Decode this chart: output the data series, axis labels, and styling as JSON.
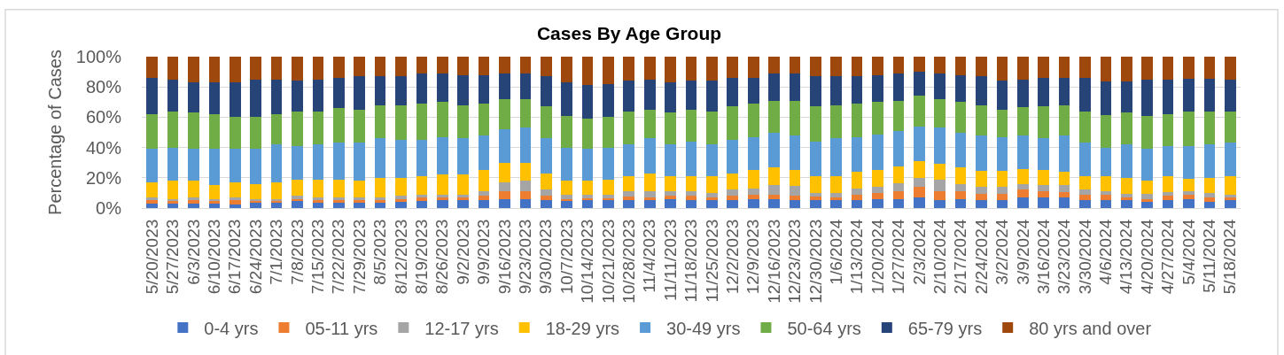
{
  "chart_data": {
    "type": "bar",
    "stacked": true,
    "title": "Cases By Age Group",
    "ylabel": "Percentage of Cases",
    "categories": [
      "5/20/2023",
      "5/27/2023",
      "6/3/2023",
      "6/10/2023",
      "6/17/2023",
      "6/24/2023",
      "7/1/2023",
      "7/8/2023",
      "7/15/2023",
      "7/22/2023",
      "7/29/2023",
      "8/5/2023",
      "8/12/2023",
      "8/19/2023",
      "8/26/2023",
      "9/2/2023",
      "9/9/2023",
      "9/16/2023",
      "9/23/2023",
      "9/30/2023",
      "10/7/2023",
      "10/14/2023",
      "10/21/2023",
      "10/28/2023",
      "11/4/2023",
      "11/11/2023",
      "11/18/2023",
      "11/25/2023",
      "12/2/2023",
      "12/9/2023",
      "12/16/2023",
      "12/23/2023",
      "12/30/2023",
      "1/6/2024",
      "1/13/2024",
      "1/20/2024",
      "1/27/2024",
      "2/3/2024",
      "2/10/2024",
      "2/17/2024",
      "2/24/2024",
      "3/2/2024",
      "3/9/2024",
      "3/16/2024",
      "3/23/2024",
      "3/30/2024",
      "4/6/2024",
      "4/13/2024",
      "4/20/2024",
      "4/27/2024",
      "5/4/2024",
      "5/11/2024",
      "5/18/2024"
    ],
    "series": [
      {
        "name": "0-4 yrs",
        "color": "#4472c4",
        "values": [
          3,
          3,
          3,
          3,
          2.5,
          4,
          4,
          4.5,
          4,
          4,
          4,
          4,
          4,
          4.5,
          5,
          5,
          5,
          6,
          6,
          5,
          5,
          5,
          5,
          5,
          5,
          6,
          5,
          5,
          5,
          6,
          6,
          5,
          5,
          5,
          5,
          6,
          6,
          7,
          5,
          6,
          5,
          5,
          7,
          7,
          7,
          5,
          5,
          5,
          4,
          5,
          6,
          4,
          5
        ]
      },
      {
        "name": "05-11 yrs",
        "color": "#ed7d31",
        "values": [
          2,
          1.5,
          2,
          2,
          2.5,
          1,
          1,
          1.5,
          1,
          1,
          1,
          1,
          2,
          2.5,
          2,
          2,
          3,
          5,
          5,
          3,
          1,
          1.5,
          1.5,
          2.5,
          2,
          2,
          3,
          2,
          3,
          3,
          3,
          3,
          2.5,
          2,
          4,
          4,
          5,
          7,
          6,
          5,
          4.5,
          4.5,
          5,
          4,
          3.5,
          4,
          4,
          2,
          2,
          3,
          2.5,
          3,
          2
        ]
      },
      {
        "name": "12-17 yrs",
        "color": "#a5a5a5",
        "values": [
          2,
          1.5,
          2,
          1,
          2,
          1,
          1,
          2,
          2,
          2,
          2,
          2,
          2,
          2,
          2,
          2,
          3,
          6,
          7,
          4,
          3,
          2.5,
          2.5,
          3.5,
          4,
          3,
          3,
          3,
          4,
          4,
          6,
          6.5,
          2.5,
          3,
          4,
          4,
          5.5,
          6,
          8,
          5,
          4.5,
          4.5,
          4,
          4.5,
          4.5,
          3,
          2,
          2.5,
          3.5,
          2.5,
          2.5,
          3,
          2
        ]
      },
      {
        "name": "18-29 yrs",
        "color": "#ffc000",
        "values": [
          10,
          12,
          11,
          9,
          10,
          10,
          11,
          11,
          12,
          12,
          11,
          13,
          12,
          12,
          13,
          13,
          14,
          13,
          12,
          11,
          9,
          9,
          10,
          10,
          12,
          10,
          10,
          11,
          11,
          12,
          12,
          10.5,
          11,
          11,
          11,
          11,
          11,
          11,
          10,
          11,
          10.5,
          10.5,
          10,
          9.5,
          9,
          9,
          10,
          10.5,
          8.5,
          10.5,
          8.5,
          10,
          12
        ]
      },
      {
        "name": "30-49 yrs",
        "color": "#5b9bd5",
        "values": [
          22,
          22,
          21,
          24,
          22,
          23,
          25,
          22,
          23,
          24,
          25,
          26,
          25,
          24,
          25,
          24,
          23,
          22,
          23,
          23,
          22,
          21,
          21,
          21,
          23,
          21,
          23,
          21,
          22,
          22,
          23,
          23,
          23,
          25,
          22.5,
          23.5,
          23.5,
          23,
          24,
          23,
          23.5,
          22,
          22,
          21,
          24,
          22,
          19,
          22,
          21,
          20,
          21.5,
          22,
          22.5
        ]
      },
      {
        "name": "50-64 yrs",
        "color": "#70ad47",
        "values": [
          23,
          24,
          24,
          23,
          21,
          21,
          20,
          23,
          22,
          23,
          22,
          22,
          23,
          24,
          23,
          22,
          21,
          20,
          19,
          21,
          21,
          20,
          20,
          22,
          19,
          21,
          21,
          22,
          22,
          22,
          21,
          23,
          23,
          22,
          22.5,
          21.5,
          20,
          20,
          19,
          20,
          20,
          18.5,
          18.5,
          21,
          20,
          21,
          21.5,
          21,
          22,
          21,
          23,
          21.5,
          20.5
        ]
      },
      {
        "name": "65-79 yrs",
        "color": "#264478",
        "values": [
          24,
          21,
          20,
          21,
          23,
          25,
          23,
          20,
          21,
          20,
          22,
          19,
          19,
          20,
          19,
          20,
          19,
          17,
          17,
          20,
          22,
          22,
          22,
          20,
          20,
          20,
          19,
          20,
          19,
          17,
          18,
          18,
          20,
          19,
          18,
          18,
          18,
          16,
          17,
          18,
          19,
          19,
          18.5,
          19,
          18,
          22,
          22,
          20.5,
          24,
          23,
          21.5,
          22,
          21
        ]
      },
      {
        "name": "80 yrs and over",
        "color": "#9e480e",
        "values": [
          14,
          15,
          17,
          17,
          17,
          15,
          15,
          16,
          15,
          14,
          13,
          13,
          13,
          11,
          11,
          12,
          12,
          11,
          11,
          13,
          17,
          19,
          18,
          16,
          15,
          17,
          16,
          16,
          14,
          14,
          11,
          11,
          13,
          13,
          13,
          12,
          11,
          10,
          11,
          12,
          13,
          16,
          15,
          14,
          14,
          14,
          16.5,
          16.5,
          15,
          15,
          14.5,
          14.5,
          15
        ]
      }
    ],
    "ylim": [
      0,
      100
    ],
    "yticks": [
      {
        "value": 0,
        "label": "0%"
      },
      {
        "value": 20,
        "label": "20%"
      },
      {
        "value": 40,
        "label": "40%"
      },
      {
        "value": 60,
        "label": "60%"
      },
      {
        "value": 80,
        "label": "80%"
      },
      {
        "value": 100,
        "label": "100%"
      }
    ],
    "grid": "y",
    "legend": "bottom"
  }
}
